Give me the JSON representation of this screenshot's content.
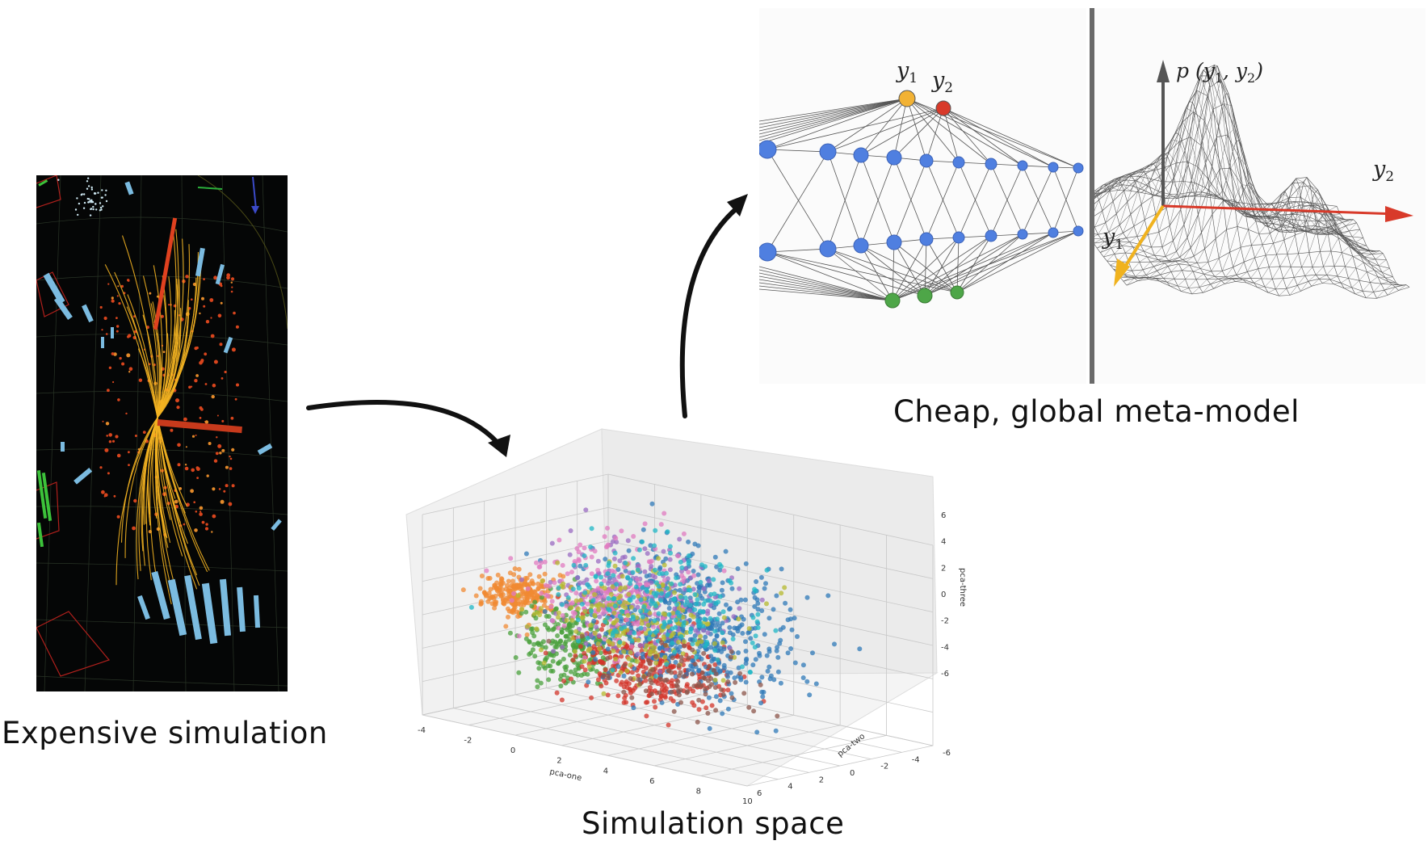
{
  "captions": {
    "expensive": "Expensive simulation",
    "space": "Simulation space",
    "meta": "Cheap, global meta-model"
  },
  "network": {
    "output_labels": [
      "y",
      "y"
    ],
    "output_subscripts": [
      "1",
      "2"
    ],
    "node_colors": {
      "hidden": "#4f7fe0",
      "output_y1": "#f2b234",
      "output_y2": "#d83a2a",
      "input": "#4ea648"
    }
  },
  "surface": {
    "z_label": "p (y",
    "z_label_sub1": "1",
    "z_label_mid": ", y",
    "z_label_sub2": "2",
    "z_label_end": ")",
    "axis_y1": "y",
    "axis_y1_sub": "1",
    "axis_y2": "y",
    "axis_y2_sub": "2",
    "axis_colors": {
      "z": "#555555",
      "y1": "#f0b21e",
      "y2": "#d83a2a"
    }
  },
  "chart_data": {
    "type": "scatter",
    "title": "",
    "xlabel": "pca-one",
    "ylabel": "pca-two",
    "zlabel": "pca-three",
    "x_ticks": [
      "-4",
      "-2",
      "0",
      "2",
      "4",
      "6",
      "8",
      "10"
    ],
    "y_ticks": [
      "-6",
      "-4",
      "-2",
      "0",
      "2",
      "4",
      "6"
    ],
    "z_ticks": [
      "6",
      "4",
      "2",
      "0",
      "-2",
      "-4",
      "-6"
    ],
    "xlim": [
      -4,
      10
    ],
    "ylim": [
      -6,
      6
    ],
    "zlim": [
      -6,
      6
    ],
    "grid": true,
    "series": [
      {
        "color": "#f08a33",
        "center": [
          -3.2,
          1.0,
          0.5
        ],
        "spread": [
          0.6,
          0.8,
          0.6
        ]
      },
      {
        "color": "#4aa03c",
        "center": [
          -1.5,
          0.0,
          -2.2
        ],
        "spread": [
          0.9,
          1.0,
          1.2
        ]
      },
      {
        "color": "#d3352b",
        "center": [
          1.0,
          -1.0,
          -3.0
        ],
        "spread": [
          1.5,
          1.0,
          1.1
        ]
      },
      {
        "color": "#2f79b8",
        "center": [
          4.0,
          0.5,
          0.5
        ],
        "spread": [
          2.0,
          1.5,
          2.0
        ]
      },
      {
        "color": "#9a6bc2",
        "center": [
          1.5,
          0.5,
          1.5
        ],
        "spread": [
          1.6,
          1.5,
          1.6
        ]
      },
      {
        "color": "#e07bc0",
        "center": [
          0.5,
          0.5,
          1.8
        ],
        "spread": [
          1.5,
          1.5,
          1.4
        ]
      },
      {
        "color": "#b6b92f",
        "center": [
          1.5,
          0.0,
          0.0
        ],
        "spread": [
          1.8,
          1.5,
          1.6
        ]
      },
      {
        "color": "#1fb7c6",
        "center": [
          2.5,
          0.5,
          1.5
        ],
        "spread": [
          1.8,
          1.5,
          1.6
        ]
      },
      {
        "color": "#8c564b",
        "center": [
          2.0,
          -1.5,
          -3.5
        ],
        "spread": [
          1.6,
          1.0,
          0.9
        ]
      }
    ]
  }
}
